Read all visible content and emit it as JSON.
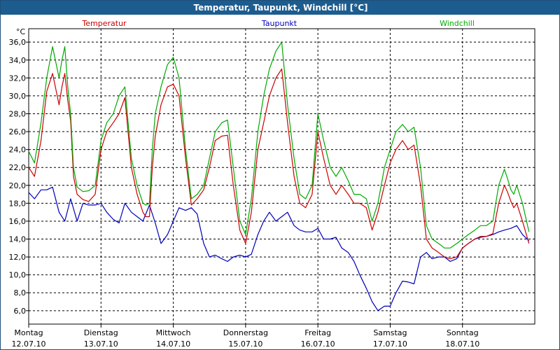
{
  "title": "Temperatur, Taupunkt, Windchill [°C]",
  "colors": {
    "title_bar": "#1d5c8f",
    "temperatur": "#cc0000",
    "taupunkt": "#0000bb",
    "windchill": "#00aa00",
    "grid": "#000000"
  },
  "chart_data": {
    "type": "line",
    "unit": "°C",
    "ylim": [
      4.5,
      37.5
    ],
    "y_ticks": [
      "6,0",
      "8,0",
      "10,0",
      "12,0",
      "14,0",
      "16,0",
      "18,0",
      "20,0",
      "22,0",
      "24,0",
      "26,0",
      "28,0",
      "30,0",
      "32,0",
      "34,0",
      "36,0"
    ],
    "xlim": [
      0,
      7.0
    ],
    "x_ticks": [
      {
        "day": "Montag",
        "date": "12.07.10",
        "x": 0
      },
      {
        "day": "Dienstag",
        "date": "13.07.10",
        "x": 1
      },
      {
        "day": "Mittwoch",
        "date": "14.07.10",
        "x": 2
      },
      {
        "day": "Donnerstag",
        "date": "15.07.10",
        "x": 3
      },
      {
        "day": "Freitag",
        "date": "16.07.10",
        "x": 4
      },
      {
        "day": "Samstag",
        "date": "17.07.10",
        "x": 5
      },
      {
        "day": "Sonntag",
        "date": "18.07.10",
        "x": 6
      }
    ],
    "grid": true,
    "series": [
      {
        "name": "Temperatur",
        "x": [
          0,
          0.08,
          0.17,
          0.25,
          0.33,
          0.42,
          0.46,
          0.5,
          0.54,
          0.58,
          0.62,
          0.67,
          0.75,
          0.83,
          0.92,
          1.0,
          1.08,
          1.17,
          1.25,
          1.33,
          1.42,
          1.5,
          1.58,
          1.62,
          1.67,
          1.71,
          1.75,
          1.83,
          1.92,
          2.0,
          2.08,
          2.17,
          2.25,
          2.33,
          2.42,
          2.5,
          2.58,
          2.67,
          2.75,
          2.83,
          2.92,
          3.0,
          3.08,
          3.17,
          3.25,
          3.33,
          3.42,
          3.5,
          3.58,
          3.67,
          3.75,
          3.83,
          3.92,
          4.0,
          4.08,
          4.17,
          4.25,
          4.33,
          4.42,
          4.5,
          4.58,
          4.67,
          4.75,
          4.83,
          4.92,
          5.0,
          5.08,
          5.17,
          5.25,
          5.33,
          5.42,
          5.5,
          5.58,
          5.67,
          5.75,
          5.83,
          5.92,
          6.0,
          6.08,
          6.17,
          6.25,
          6.33,
          6.42,
          6.5,
          6.58,
          6.62,
          6.67,
          6.71,
          6.75,
          6.83,
          6.92
        ],
        "y": [
          22.0,
          21.0,
          25.0,
          30.5,
          32.5,
          29.0,
          31.0,
          32.5,
          29.5,
          27.2,
          21.0,
          19.0,
          18.4,
          18.2,
          19.0,
          24.0,
          26.0,
          27.0,
          28.0,
          29.8,
          22.0,
          19.0,
          17.0,
          16.5,
          16.5,
          22.0,
          25.5,
          29.0,
          31.0,
          31.3,
          30.0,
          23.0,
          17.8,
          18.5,
          19.5,
          22.0,
          25.0,
          25.5,
          25.6,
          20.0,
          15.0,
          13.5,
          17.0,
          24.0,
          27.0,
          30.0,
          32.0,
          33.0,
          27.0,
          21.0,
          18.0,
          17.5,
          19.0,
          26.0,
          23.0,
          20.0,
          19.0,
          20.0,
          19.0,
          18.0,
          18.0,
          17.5,
          15.0,
          17.0,
          20.0,
          22.5,
          24.0,
          25.0,
          24.0,
          24.5,
          20.0,
          14.0,
          13.0,
          12.5,
          12.0,
          11.8,
          12.0,
          13.0,
          13.5,
          14.0,
          14.3,
          14.3,
          14.6,
          18.0,
          20.0,
          19.3,
          18.2,
          17.5,
          18.0,
          16.0,
          13.5
        ]
      },
      {
        "name": "Taupunkt",
        "x": [
          0,
          0.08,
          0.17,
          0.25,
          0.33,
          0.42,
          0.5,
          0.58,
          0.67,
          0.75,
          0.83,
          0.92,
          1.0,
          1.08,
          1.17,
          1.25,
          1.33,
          1.42,
          1.5,
          1.58,
          1.67,
          1.75,
          1.83,
          1.92,
          2.0,
          2.08,
          2.17,
          2.25,
          2.33,
          2.42,
          2.5,
          2.58,
          2.67,
          2.75,
          2.83,
          2.92,
          3.0,
          3.08,
          3.17,
          3.25,
          3.33,
          3.42,
          3.5,
          3.58,
          3.67,
          3.75,
          3.83,
          3.92,
          4.0,
          4.08,
          4.17,
          4.25,
          4.33,
          4.42,
          4.5,
          4.58,
          4.67,
          4.75,
          4.83,
          4.92,
          5.0,
          5.08,
          5.17,
          5.25,
          5.33,
          5.42,
          5.5,
          5.58,
          5.67,
          5.75,
          5.83,
          5.92,
          6.0,
          6.08,
          6.17,
          6.25,
          6.33,
          6.42,
          6.5,
          6.58,
          6.67,
          6.75,
          6.83,
          6.92
        ],
        "y": [
          19.2,
          18.5,
          19.5,
          19.5,
          19.8,
          17.0,
          16.0,
          18.5,
          16.0,
          18.0,
          17.8,
          17.8,
          18.0,
          17.0,
          16.2,
          15.8,
          18.0,
          17.0,
          16.5,
          16.0,
          17.8,
          15.8,
          13.5,
          14.5,
          16.0,
          17.5,
          17.2,
          17.5,
          16.8,
          13.5,
          12.0,
          12.2,
          11.8,
          11.5,
          12.0,
          12.2,
          12.0,
          12.3,
          14.5,
          16.0,
          17.0,
          16.0,
          16.5,
          17.0,
          15.5,
          15.0,
          14.8,
          14.8,
          15.2,
          14.0,
          14.0,
          14.2,
          13.0,
          12.5,
          11.5,
          10.0,
          8.5,
          7.0,
          6.0,
          6.5,
          6.5,
          8.0,
          9.3,
          9.2,
          9.0,
          12.0,
          12.5,
          11.8,
          12.0,
          12.0,
          11.5,
          11.8,
          13.0,
          13.5,
          14.0,
          14.2,
          14.3,
          14.5,
          14.8,
          15.0,
          15.2,
          15.5,
          14.5,
          13.8
        ]
      },
      {
        "name": "Windchill",
        "x": [
          0,
          0.08,
          0.17,
          0.25,
          0.33,
          0.42,
          0.46,
          0.5,
          0.54,
          0.58,
          0.62,
          0.67,
          0.75,
          0.83,
          0.92,
          1.0,
          1.08,
          1.17,
          1.25,
          1.33,
          1.42,
          1.5,
          1.58,
          1.62,
          1.67,
          1.71,
          1.75,
          1.83,
          1.92,
          2.0,
          2.08,
          2.17,
          2.25,
          2.33,
          2.42,
          2.5,
          2.58,
          2.67,
          2.75,
          2.83,
          2.92,
          3.0,
          3.08,
          3.17,
          3.25,
          3.33,
          3.42,
          3.5,
          3.58,
          3.67,
          3.75,
          3.83,
          3.92,
          4.0,
          4.08,
          4.17,
          4.25,
          4.33,
          4.42,
          4.5,
          4.58,
          4.67,
          4.75,
          4.83,
          4.92,
          5.0,
          5.08,
          5.17,
          5.25,
          5.33,
          5.42,
          5.5,
          5.58,
          5.67,
          5.75,
          5.83,
          5.92,
          6.0,
          6.08,
          6.17,
          6.25,
          6.33,
          6.42,
          6.5,
          6.58,
          6.62,
          6.67,
          6.71,
          6.75,
          6.83,
          6.92
        ],
        "y": [
          23.8,
          22.5,
          27.0,
          32.0,
          35.5,
          32.0,
          34.0,
          35.5,
          31.0,
          28.0,
          22.0,
          19.8,
          19.3,
          19.4,
          20.0,
          25.0,
          27.0,
          28.0,
          30.0,
          31.0,
          23.0,
          20.0,
          18.0,
          17.8,
          18.0,
          24.0,
          28.0,
          31.0,
          33.5,
          34.3,
          32.0,
          24.0,
          18.5,
          19.0,
          20.0,
          23.0,
          26.0,
          27.0,
          27.3,
          22.0,
          16.0,
          14.5,
          18.5,
          26.0,
          30.0,
          33.0,
          35.0,
          36.0,
          29.0,
          23.0,
          19.0,
          18.5,
          20.0,
          28.0,
          25.0,
          22.0,
          21.0,
          22.0,
          20.5,
          19.0,
          19.0,
          18.5,
          16.0,
          18.0,
          22.0,
          24.0,
          26.0,
          26.8,
          26.0,
          26.5,
          22.0,
          15.5,
          14.0,
          13.5,
          13.0,
          13.0,
          13.5,
          14.0,
          14.5,
          15.0,
          15.5,
          15.5,
          16.0,
          20.0,
          21.8,
          20.8,
          19.5,
          19.0,
          20.0,
          18.0,
          14.8
        ]
      }
    ]
  }
}
